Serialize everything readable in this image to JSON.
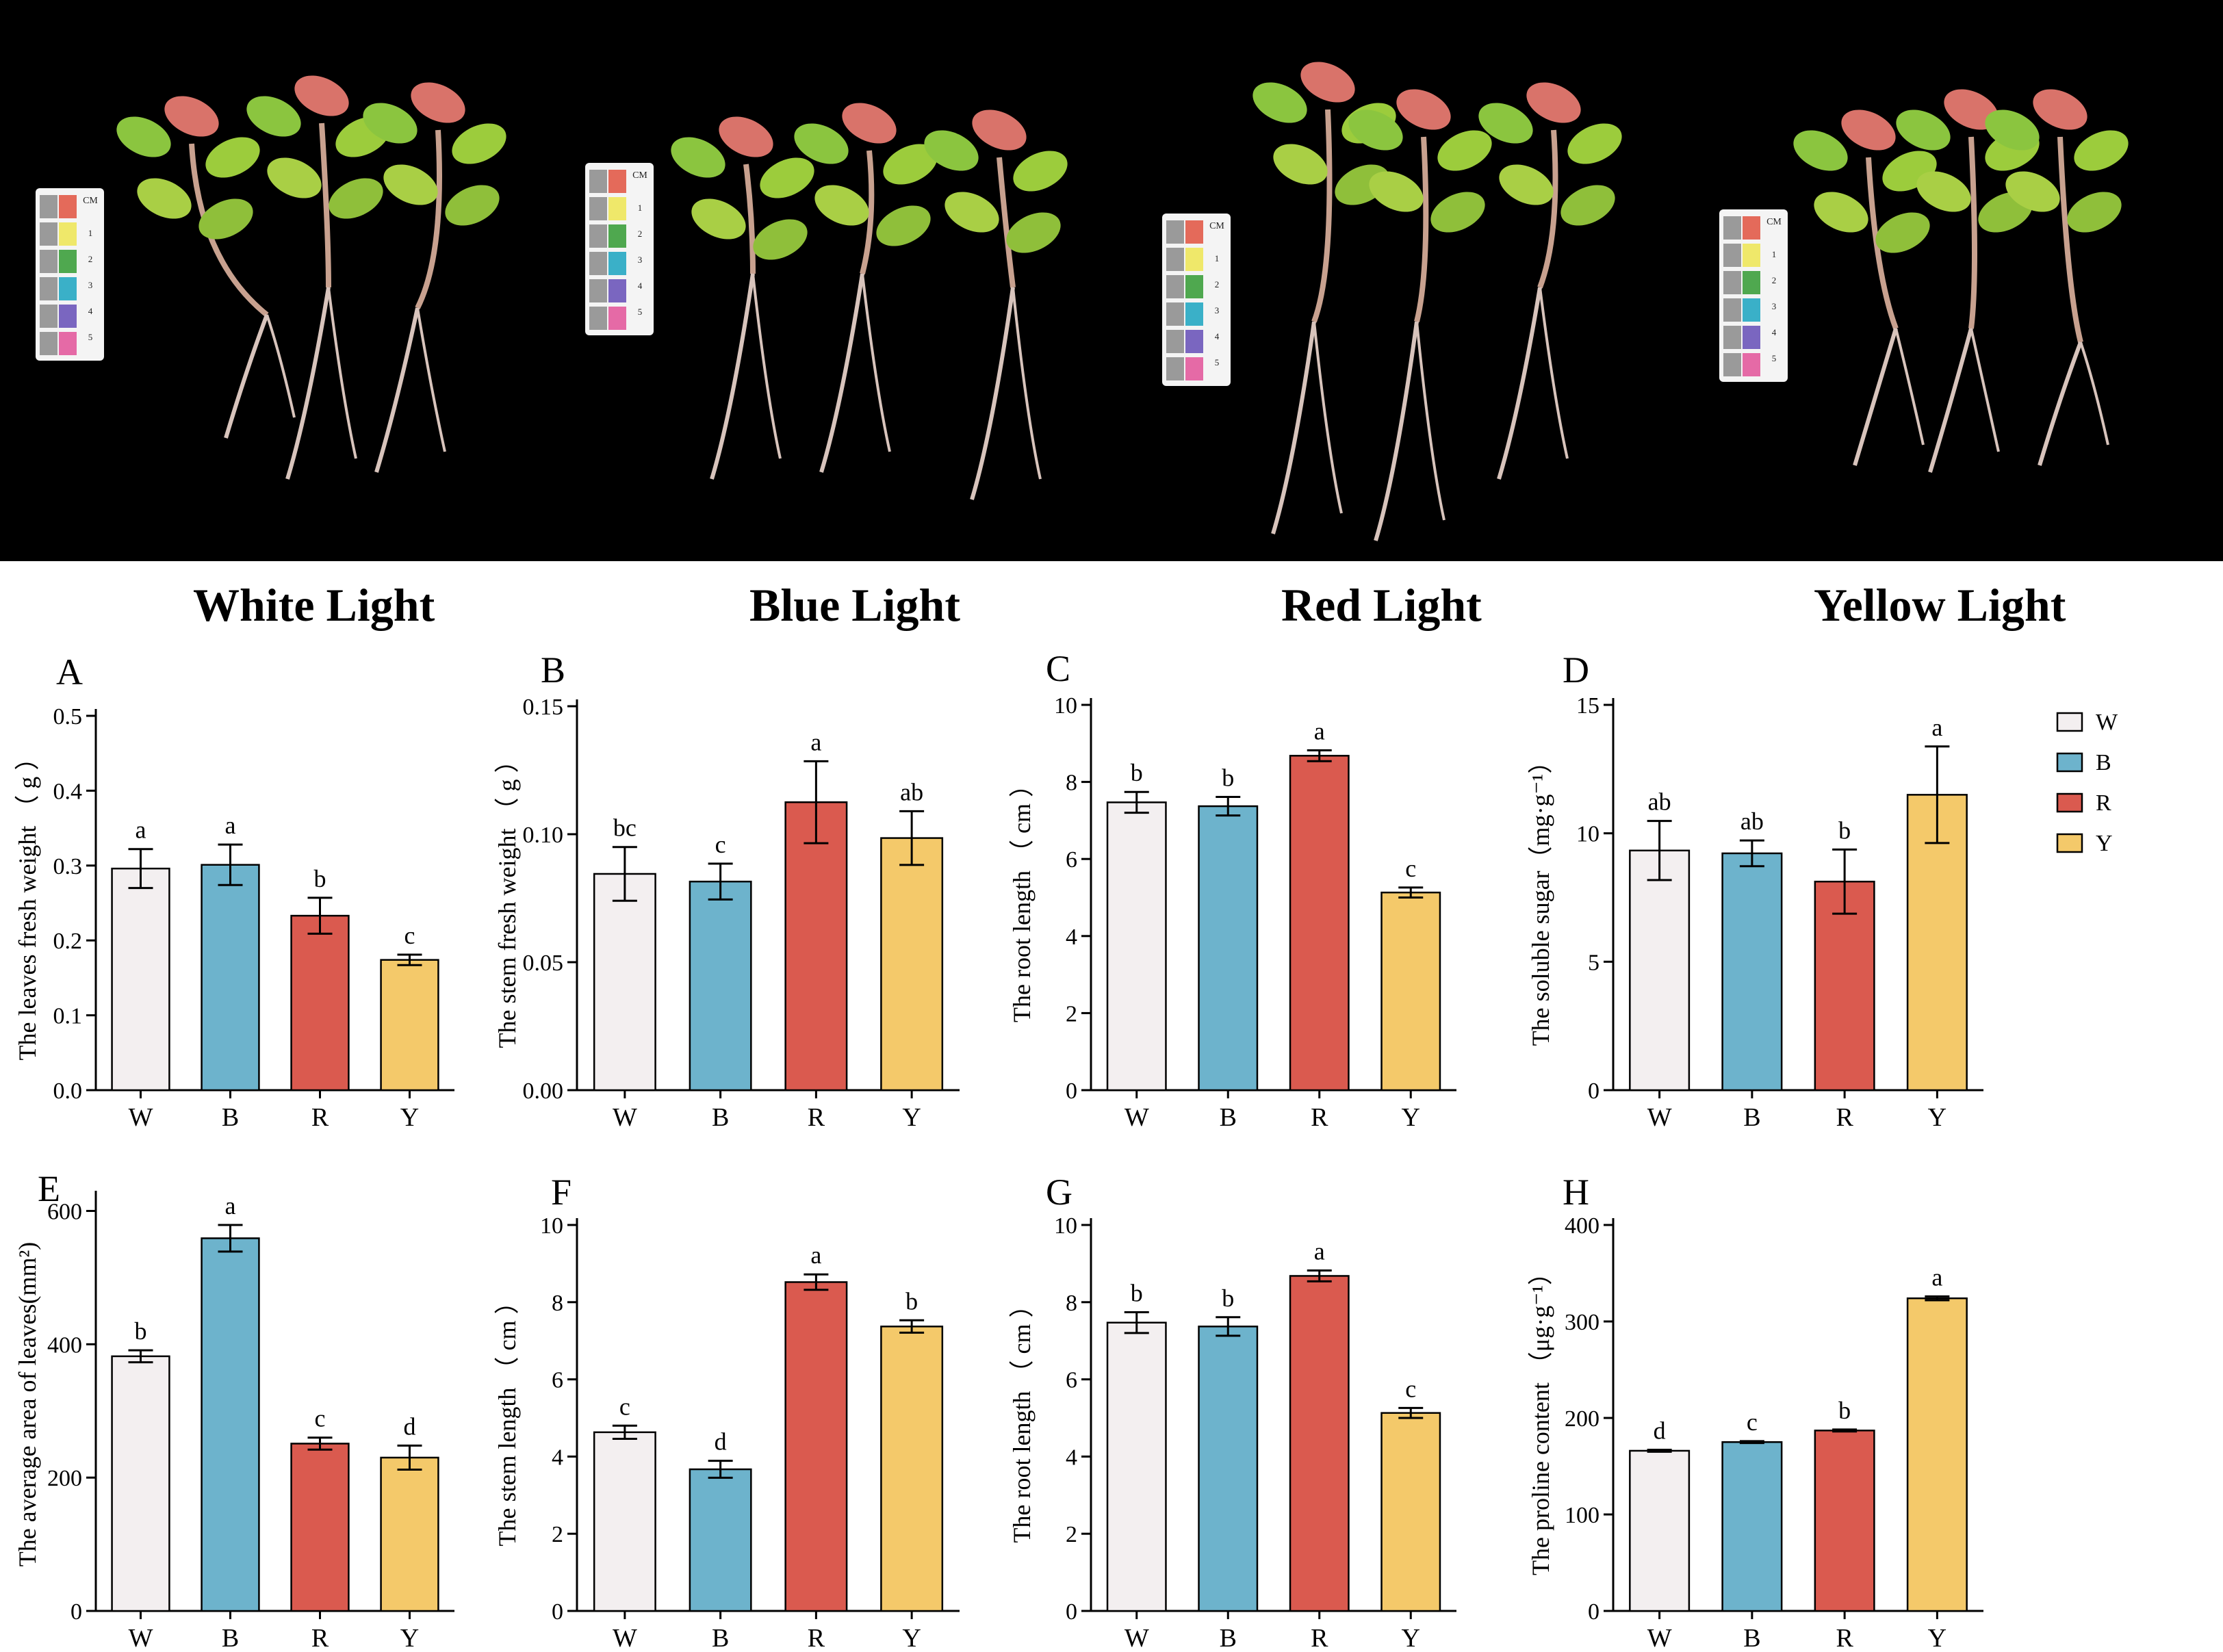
{
  "photo": {
    "conditions": [
      "White Light",
      "Blue Light",
      "Red Light",
      "Yellow Light"
    ],
    "scale_card_text": "CM",
    "scale_card_ticks": [
      "1",
      "2",
      "3",
      "4",
      "5"
    ]
  },
  "legend": {
    "entries": [
      {
        "label": "W",
        "color": "#f3eff0"
      },
      {
        "label": "B",
        "color": "#6db3cc"
      },
      {
        "label": "R",
        "color": "#da5a4f"
      },
      {
        "label": "Y",
        "color": "#f4c96a"
      }
    ]
  },
  "colors": {
    "W": "#f3eff0",
    "B": "#6db3cc",
    "R": "#da5a4f",
    "Y": "#f4c96a"
  },
  "chart_data": [
    {
      "panel": "A",
      "type": "bar",
      "categories": [
        "W",
        "B",
        "R",
        "Y"
      ],
      "ylabel": "The  leaves fresh weight （ g ）",
      "ylim": [
        0,
        0.5
      ],
      "yticks": [
        "0.0",
        "0.1",
        "0.2",
        "0.3",
        "0.4",
        "0.5"
      ],
      "values": [
        0.296,
        0.301,
        0.233,
        0.174
      ],
      "errors": [
        0.026,
        0.027,
        0.024,
        0.007
      ],
      "letters": [
        "a",
        "a",
        "b",
        "c"
      ]
    },
    {
      "panel": "B",
      "type": "bar",
      "categories": [
        "W",
        "B",
        "R",
        "Y"
      ],
      "ylabel": "The  stem  fresh weight （ g ）",
      "ylim": [
        0,
        0.15
      ],
      "yticks": [
        "0.00",
        "0.05",
        "0.10",
        "0.15"
      ],
      "values": [
        0.0845,
        0.0815,
        0.1125,
        0.0985
      ],
      "errors": [
        0.0105,
        0.007,
        0.016,
        0.0105
      ],
      "letters": [
        "bc",
        "c",
        "a",
        "ab"
      ]
    },
    {
      "panel": "C",
      "type": "bar",
      "categories": [
        "W",
        "B",
        "R",
        "Y"
      ],
      "ylabel": "The root length （ cm ）",
      "ylim": [
        0,
        10
      ],
      "yticks": [
        "0",
        "2",
        "4",
        "6",
        "8",
        "10"
      ],
      "values": [
        7.47,
        7.37,
        8.68,
        5.13
      ],
      "errors": [
        0.27,
        0.24,
        0.14,
        0.13
      ],
      "letters": [
        "b",
        "b",
        "a",
        "c"
      ]
    },
    {
      "panel": "D",
      "type": "bar",
      "categories": [
        "W",
        "B",
        "R",
        "Y"
      ],
      "ylabel": "The  soluble sugar（mg·g⁻¹）",
      "ylim": [
        0,
        15
      ],
      "yticks": [
        "0",
        "5",
        "10",
        "15"
      ],
      "values": [
        9.33,
        9.22,
        8.12,
        11.5
      ],
      "errors": [
        1.15,
        0.5,
        1.25,
        1.88
      ],
      "letters": [
        "ab",
        "ab",
        "b",
        "a"
      ]
    },
    {
      "panel": "E",
      "type": "bar",
      "categories": [
        "W",
        "B",
        "R",
        "Y"
      ],
      "ylabel": "The average area of leaves(mm²)",
      "ylim": [
        0,
        620
      ],
      "yticks": [
        "0",
        "200",
        "400",
        "600"
      ],
      "values": [
        382,
        559,
        251,
        230
      ],
      "errors": [
        9,
        20,
        9,
        18
      ],
      "letters": [
        "b",
        "a",
        "c",
        "d"
      ]
    },
    {
      "panel": "F",
      "type": "bar",
      "categories": [
        "W",
        "B",
        "R",
        "Y"
      ],
      "ylabel": "The stem length （ cm ）",
      "ylim": [
        0,
        10
      ],
      "yticks": [
        "0",
        "2",
        "4",
        "6",
        "8",
        "10"
      ],
      "values": [
        4.63,
        3.67,
        8.52,
        7.37
      ],
      "errors": [
        0.17,
        0.22,
        0.2,
        0.16
      ],
      "letters": [
        "c",
        "d",
        "a",
        "b"
      ]
    },
    {
      "panel": "G",
      "type": "bar",
      "categories": [
        "W",
        "B",
        "R",
        "Y"
      ],
      "ylabel": "The root length （ cm ）",
      "ylim": [
        0,
        10
      ],
      "yticks": [
        "0",
        "2",
        "4",
        "6",
        "8",
        "10"
      ],
      "values": [
        7.47,
        7.37,
        8.68,
        5.13
      ],
      "errors": [
        0.27,
        0.24,
        0.14,
        0.13
      ],
      "letters": [
        "b",
        "b",
        "a",
        "c"
      ]
    },
    {
      "panel": "H",
      "type": "bar",
      "categories": [
        "W",
        "B",
        "R",
        "Y"
      ],
      "ylabel": "The proline content （μg·g⁻¹）",
      "ylim": [
        0,
        400
      ],
      "yticks": [
        "0",
        "100",
        "200",
        "300",
        "400"
      ],
      "values": [
        166,
        175,
        187,
        324
      ],
      "errors": [
        1,
        1,
        1,
        2
      ],
      "letters": [
        "d",
        "c",
        "b",
        "a"
      ]
    }
  ]
}
